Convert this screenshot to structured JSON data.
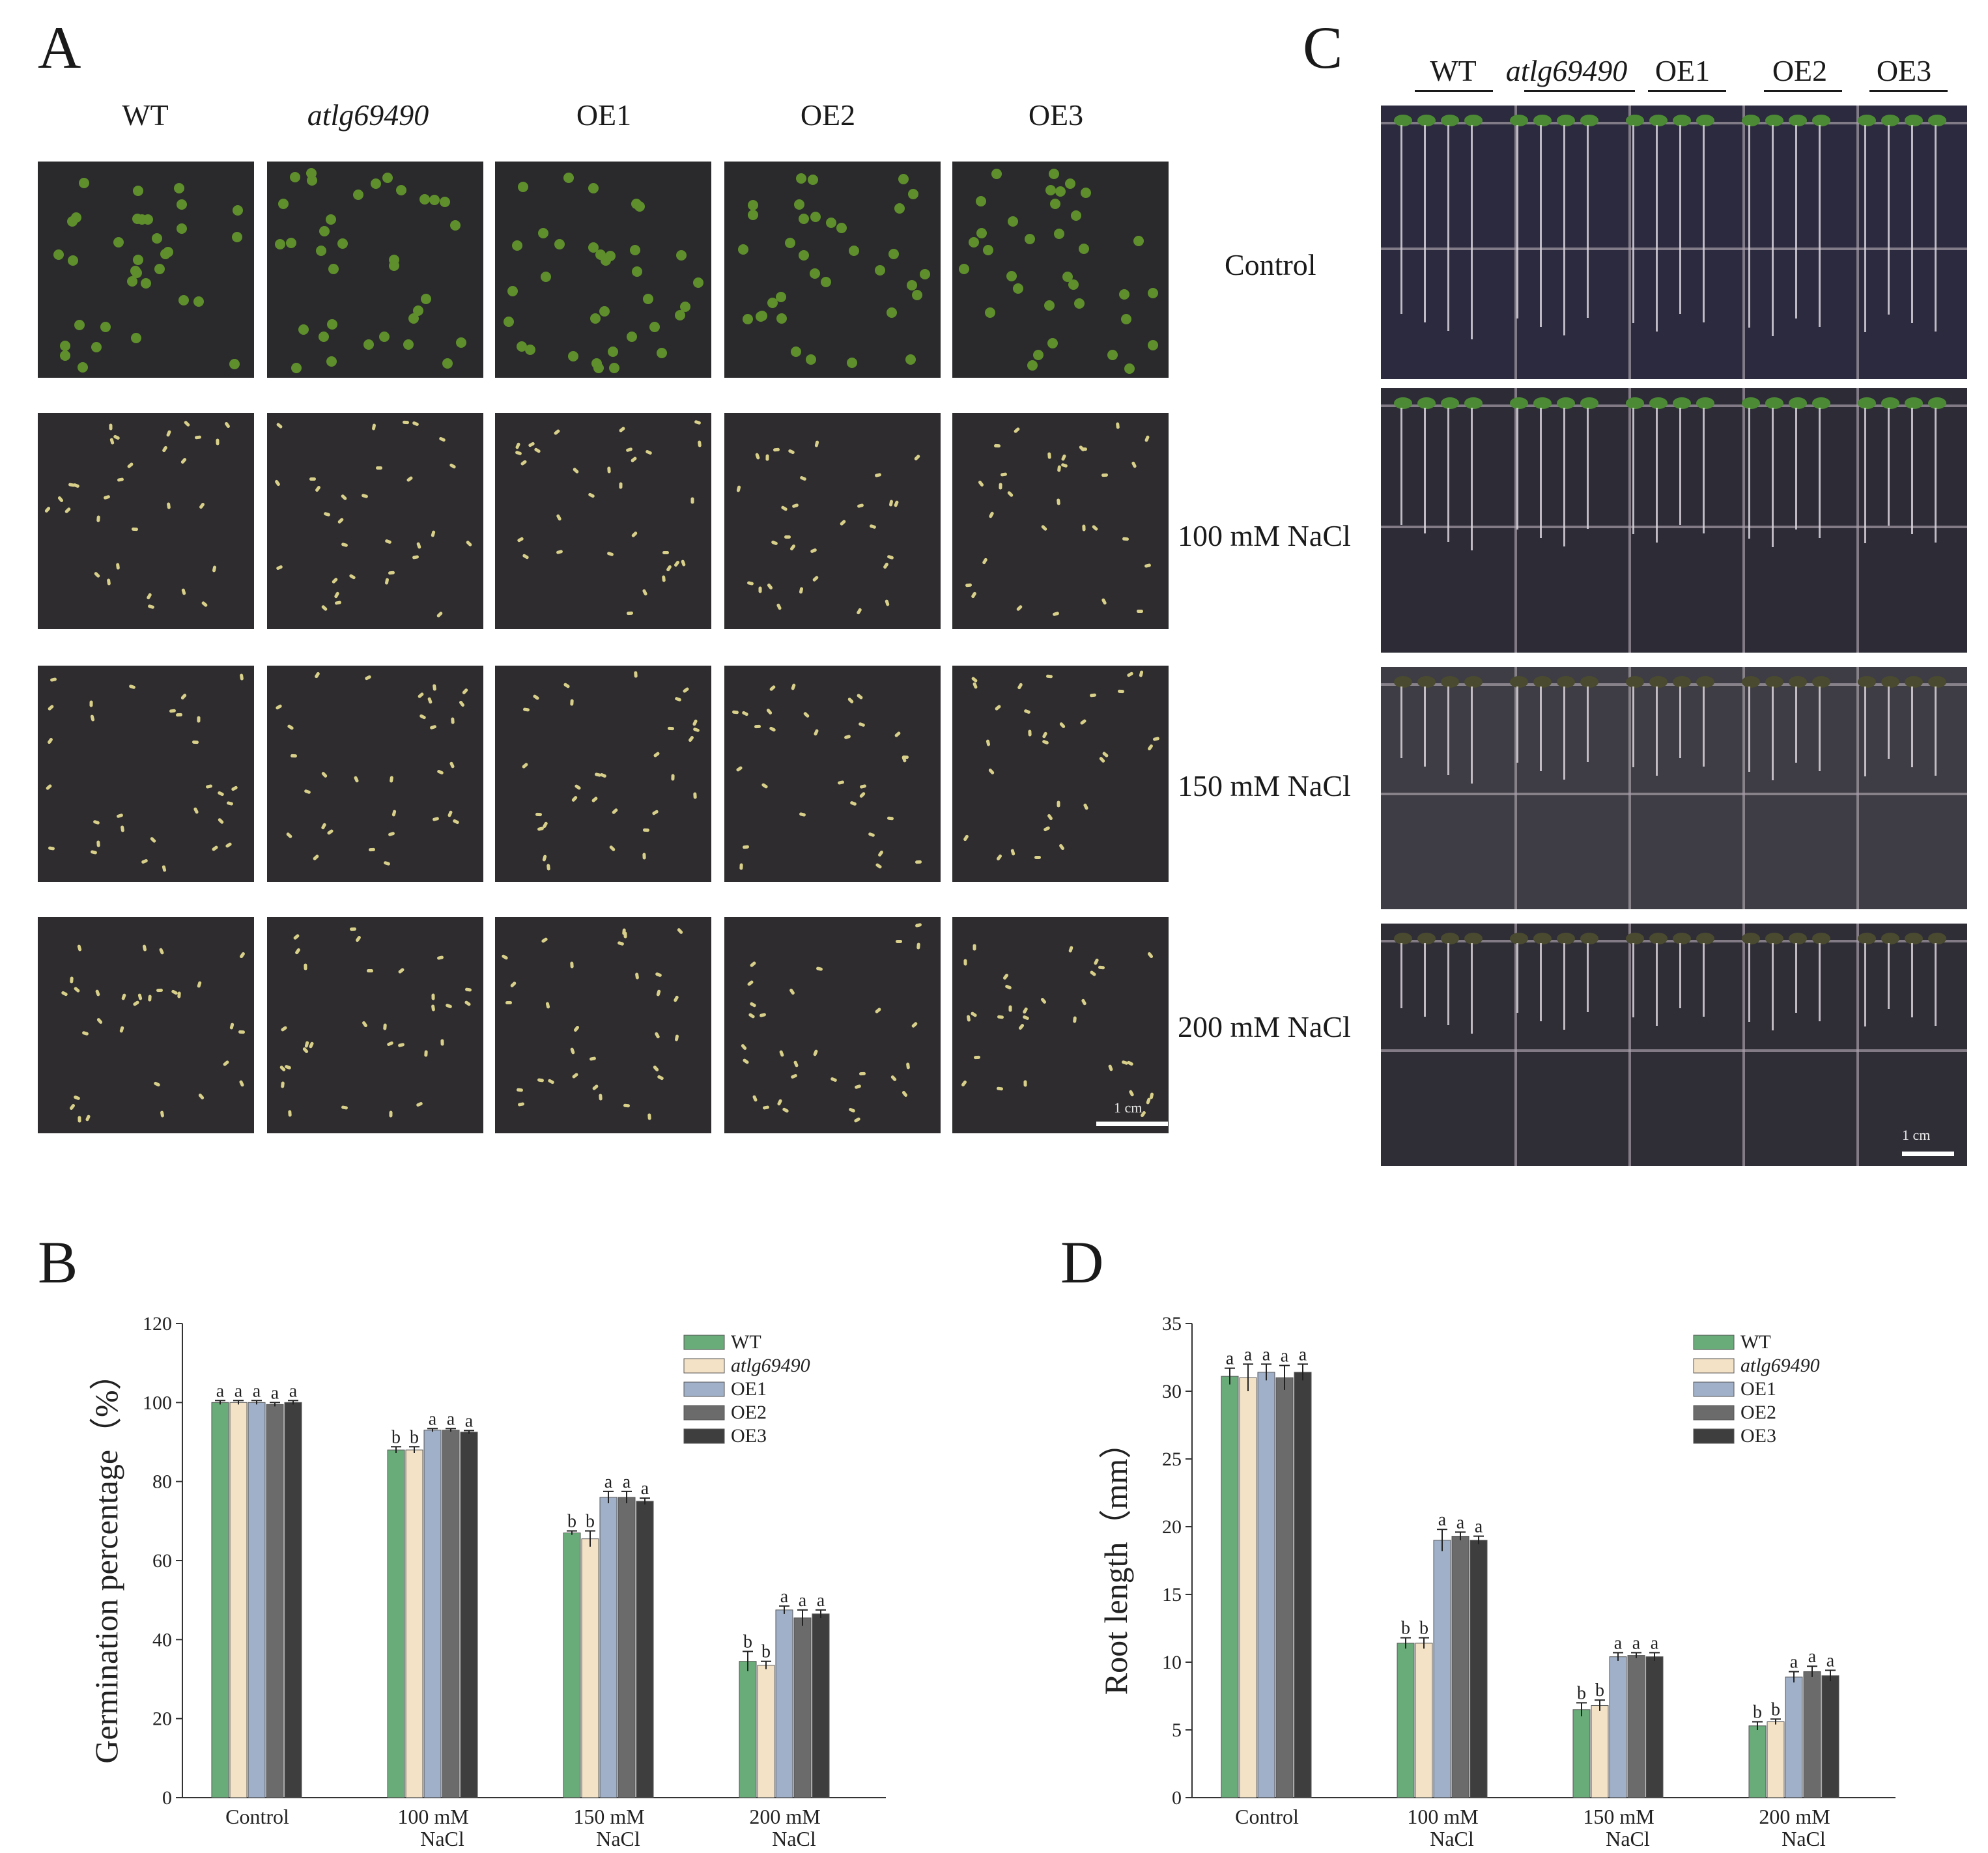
{
  "panels": {
    "a": "A",
    "b": "B",
    "c": "C",
    "d": "D"
  },
  "genotypes": [
    "WT",
    "atlg69490",
    "OE1",
    "OE2",
    "OE3"
  ],
  "conditions": [
    "Control",
    "100 mM NaCl",
    "150 mM NaCl",
    "200 mM NaCl"
  ],
  "scale_label": "1 cm",
  "colors": {
    "WT": "#6aab7a",
    "atlg69490": "#f3e2c6",
    "OE1": "#9fb0c8",
    "OE2": "#6b6b6b",
    "OE3": "#3e3e3e"
  },
  "chart_data": [
    {
      "type": "bar",
      "panel": "B",
      "categories": [
        "Control",
        "100 mM\nNaCl",
        "150 mM\nNaCl",
        "200 mM\nNaCl"
      ],
      "ylabel": "Germination percentage（%）",
      "ylim": [
        0,
        120
      ],
      "yticks": [
        0,
        20,
        40,
        60,
        80,
        100,
        120
      ],
      "series": [
        {
          "name": "WT",
          "values": [
            100,
            88,
            67,
            34.5
          ],
          "errors": [
            0.5,
            0.8,
            0.5,
            2.5
          ],
          "letters": [
            "a",
            "b",
            "b",
            "b"
          ]
        },
        {
          "name": "atlg69490",
          "values": [
            100,
            88,
            65.5,
            33.5
          ],
          "errors": [
            0.5,
            0.8,
            2.0,
            1.0
          ],
          "letters": [
            "a",
            "b",
            "b",
            "b"
          ]
        },
        {
          "name": "OE1",
          "values": [
            100,
            93,
            76,
            47.5
          ],
          "errors": [
            0.5,
            0.4,
            1.5,
            1.0
          ],
          "letters": [
            "a",
            "a",
            "a",
            "a"
          ]
        },
        {
          "name": "OE2",
          "values": [
            99.5,
            93,
            76,
            45.5
          ],
          "errors": [
            0.5,
            0.4,
            1.5,
            2.0
          ],
          "letters": [
            "a",
            "a",
            "a",
            "a"
          ]
        },
        {
          "name": "OE3",
          "values": [
            100,
            92.5,
            75,
            46.5
          ],
          "errors": [
            0.5,
            0.4,
            0.8,
            1.0
          ],
          "letters": [
            "a",
            "a",
            "a",
            "a"
          ]
        }
      ]
    },
    {
      "type": "bar",
      "panel": "D",
      "categories": [
        "Control",
        "100 mM\nNaCl",
        "150 mM\nNaCl",
        "200 mM\nNaCl"
      ],
      "ylabel": "Root length（mm）",
      "ylim": [
        0,
        35
      ],
      "yticks": [
        0,
        5,
        10,
        15,
        20,
        25,
        30,
        35
      ],
      "series": [
        {
          "name": "WT",
          "values": [
            31.1,
            11.4,
            6.5,
            5.3
          ],
          "errors": [
            0.6,
            0.4,
            0.5,
            0.3
          ],
          "letters": [
            "a",
            "b",
            "b",
            "b"
          ]
        },
        {
          "name": "atlg69490",
          "values": [
            31.0,
            11.4,
            6.8,
            5.6
          ],
          "errors": [
            1.0,
            0.4,
            0.4,
            0.2
          ],
          "letters": [
            "a",
            "b",
            "b",
            "b"
          ]
        },
        {
          "name": "OE1",
          "values": [
            31.4,
            19.0,
            10.4,
            8.9
          ],
          "errors": [
            0.6,
            0.8,
            0.3,
            0.4
          ],
          "letters": [
            "a",
            "a",
            "a",
            "a"
          ]
        },
        {
          "name": "OE2",
          "values": [
            31.0,
            19.3,
            10.5,
            9.3
          ],
          "errors": [
            0.9,
            0.3,
            0.2,
            0.4
          ],
          "letters": [
            "a",
            "a",
            "a",
            "a"
          ]
        },
        {
          "name": "OE3",
          "values": [
            31.4,
            19.0,
            10.4,
            9.0
          ],
          "errors": [
            0.6,
            0.3,
            0.3,
            0.4
          ],
          "letters": [
            "a",
            "a",
            "a",
            "a"
          ]
        }
      ]
    }
  ]
}
